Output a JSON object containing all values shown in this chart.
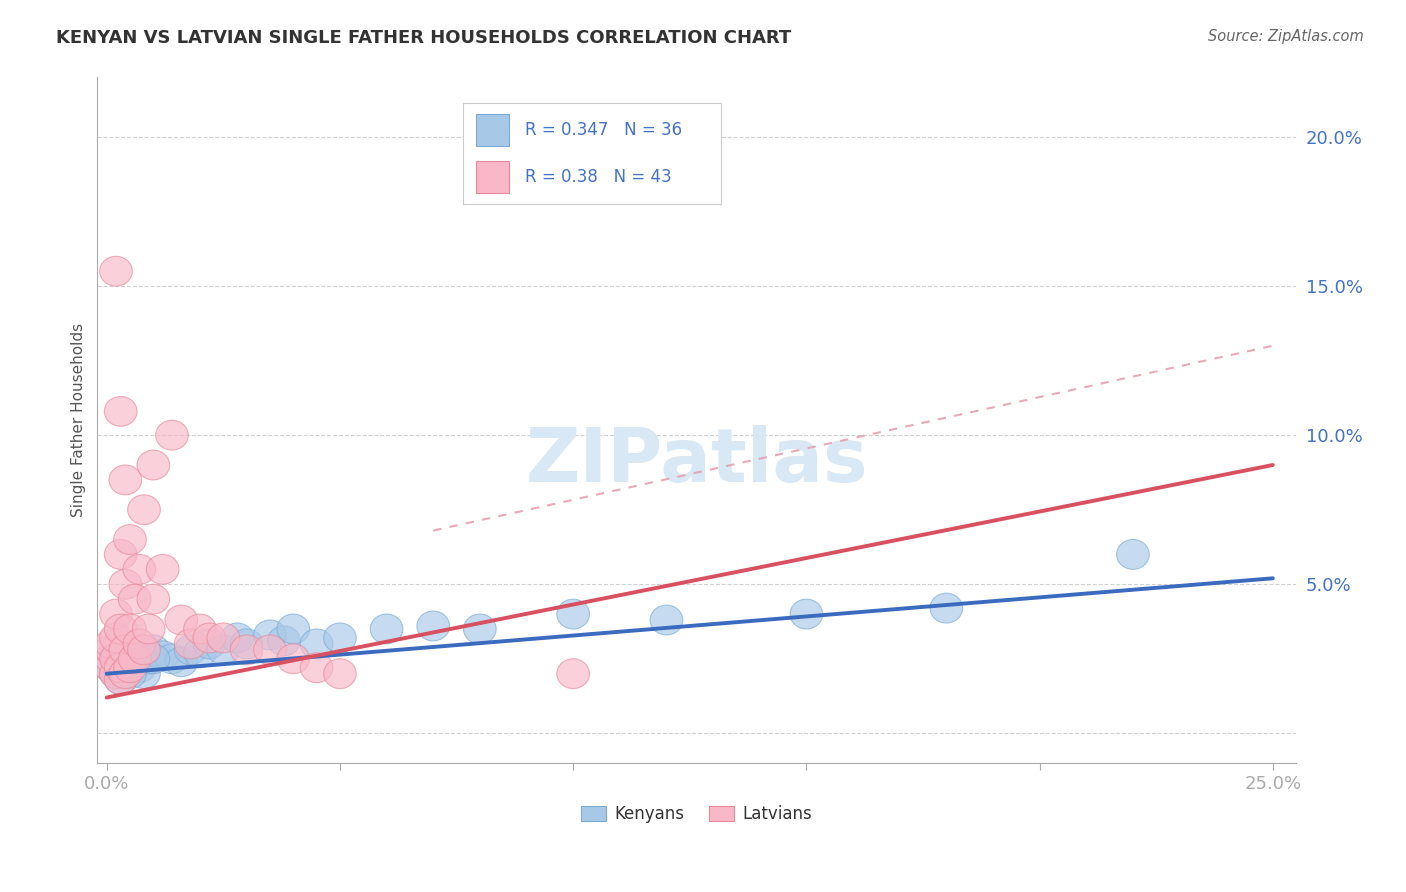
{
  "title": "KENYAN VS LATVIAN SINGLE FATHER HOUSEHOLDS CORRELATION CHART",
  "source": "Source: ZipAtlas.com",
  "ylabel": "Single Father Households",
  "xlim": [
    -0.002,
    0.255
  ],
  "ylim": [
    -0.01,
    0.22
  ],
  "yticks": [
    0.0,
    0.05,
    0.1,
    0.15,
    0.2
  ],
  "ytick_labels": [
    "",
    "5.0%",
    "10.0%",
    "15.0%",
    "20.0%"
  ],
  "xticks": [
    0.0,
    0.05,
    0.1,
    0.15,
    0.2,
    0.25
  ],
  "xtick_labels": [
    "0.0%",
    "",
    "",
    "",
    "",
    "25.0%"
  ],
  "watermark": "ZIPatlas",
  "kenyan_color": "#a8c8e8",
  "kenyan_edge_color": "#7aaad4",
  "latvian_color": "#f8b8c8",
  "latvian_edge_color": "#e88898",
  "kenyan_line_color": "#3a6bbf",
  "latvian_line_color": "#d95060",
  "dashed_line_color": "#e8a0b0",
  "kenyan_r": 0.347,
  "kenyan_n": 36,
  "latvian_r": 0.38,
  "latvian_n": 43,
  "kenyan_line": [
    [
      0.0,
      0.02
    ],
    [
      0.25,
      0.052
    ]
  ],
  "latvian_line": [
    [
      0.0,
      0.012
    ],
    [
      0.25,
      0.09
    ]
  ],
  "dashed_line": [
    [
      0.07,
      0.068
    ],
    [
      0.25,
      0.13
    ]
  ],
  "background_color": "#ffffff",
  "grid_color": "#cccccc",
  "title_color": "#333333",
  "source_color": "#666666",
  "tick_color": "#4472c4",
  "legend_r_color": "#4472c4",
  "kenyan_scatter_x": [
    0.001,
    0.002,
    0.002,
    0.003,
    0.003,
    0.004,
    0.005,
    0.006,
    0.007,
    0.008,
    0.009,
    0.01,
    0.012,
    0.014,
    0.016,
    0.018,
    0.02,
    0.022,
    0.025,
    0.028,
    0.03,
    0.035,
    0.038,
    0.04,
    0.045,
    0.05,
    0.06,
    0.07,
    0.08,
    0.1,
    0.12,
    0.15,
    0.18,
    0.22,
    0.005,
    0.01
  ],
  "kenyan_scatter_y": [
    0.022,
    0.02,
    0.025,
    0.018,
    0.023,
    0.021,
    0.024,
    0.026,
    0.022,
    0.02,
    0.025,
    0.028,
    0.026,
    0.025,
    0.024,
    0.028,
    0.027,
    0.03,
    0.028,
    0.032,
    0.03,
    0.033,
    0.031,
    0.035,
    0.03,
    0.032,
    0.035,
    0.036,
    0.035,
    0.04,
    0.038,
    0.04,
    0.042,
    0.06,
    0.02,
    0.025
  ],
  "latvian_scatter_x": [
    0.001,
    0.001,
    0.001,
    0.001,
    0.002,
    0.002,
    0.002,
    0.002,
    0.003,
    0.003,
    0.003,
    0.003,
    0.004,
    0.004,
    0.004,
    0.005,
    0.005,
    0.005,
    0.006,
    0.006,
    0.007,
    0.007,
    0.008,
    0.008,
    0.009,
    0.01,
    0.01,
    0.012,
    0.014,
    0.016,
    0.018,
    0.02,
    0.022,
    0.025,
    0.03,
    0.035,
    0.04,
    0.045,
    0.05,
    0.1,
    0.002,
    0.003,
    0.004
  ],
  "latvian_scatter_y": [
    0.022,
    0.025,
    0.028,
    0.03,
    0.02,
    0.025,
    0.032,
    0.04,
    0.018,
    0.022,
    0.035,
    0.06,
    0.02,
    0.028,
    0.05,
    0.022,
    0.035,
    0.065,
    0.025,
    0.045,
    0.03,
    0.055,
    0.028,
    0.075,
    0.035,
    0.045,
    0.09,
    0.055,
    0.1,
    0.038,
    0.03,
    0.035,
    0.032,
    0.032,
    0.028,
    0.028,
    0.025,
    0.022,
    0.02,
    0.02,
    0.155,
    0.108,
    0.085
  ]
}
